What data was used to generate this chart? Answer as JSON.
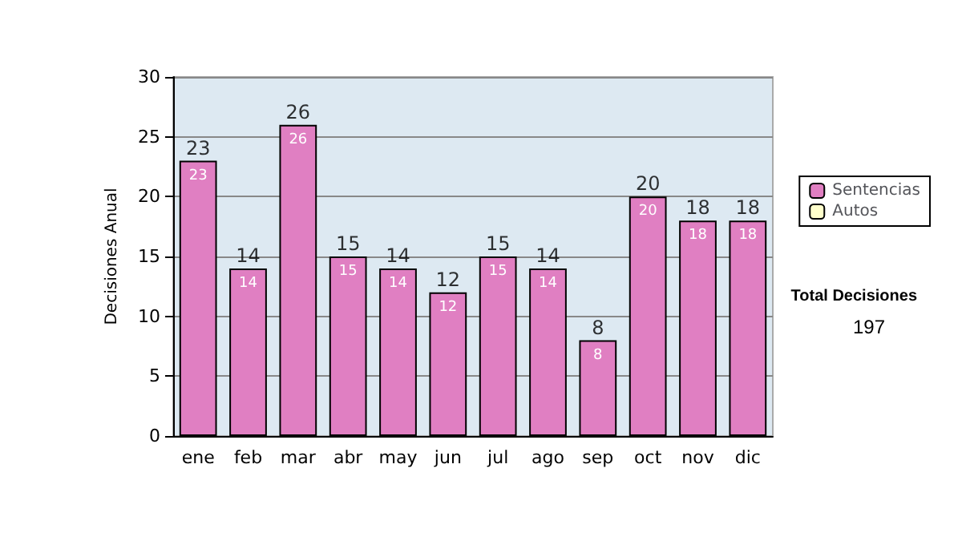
{
  "chart_data": {
    "type": "bar",
    "ylabel": "Decisiones Anual",
    "categories": [
      "ene",
      "feb",
      "mar",
      "abr",
      "may",
      "jun",
      "jul",
      "ago",
      "sep",
      "oct",
      "nov",
      "dic"
    ],
    "series": [
      {
        "name": "Sentencias",
        "color": "#e07fc2",
        "values": [
          23,
          14,
          26,
          15,
          14,
          12,
          15,
          14,
          8,
          20,
          18,
          18
        ],
        "value_labels": [
          "23",
          "14",
          "26",
          "15",
          "14",
          "12",
          "15",
          "14",
          "8",
          "20",
          "18",
          "18"
        ]
      },
      {
        "name": "Autos",
        "color": "#ffffcc",
        "values": [
          null,
          null,
          null,
          null,
          null,
          null,
          null,
          null,
          null,
          null,
          null,
          null
        ]
      }
    ],
    "stacked": true,
    "totals": [
      "23",
      "14",
      "26",
      "15",
      "14",
      "12",
      "15",
      "14",
      "8",
      "20",
      "18",
      "18"
    ],
    "ylim": [
      0,
      30
    ],
    "yticks": [
      0,
      5,
      10,
      15,
      20,
      25,
      30
    ],
    "grid": "y",
    "legend": "right",
    "annotations": [
      "Total Decisiones",
      "197"
    ]
  }
}
